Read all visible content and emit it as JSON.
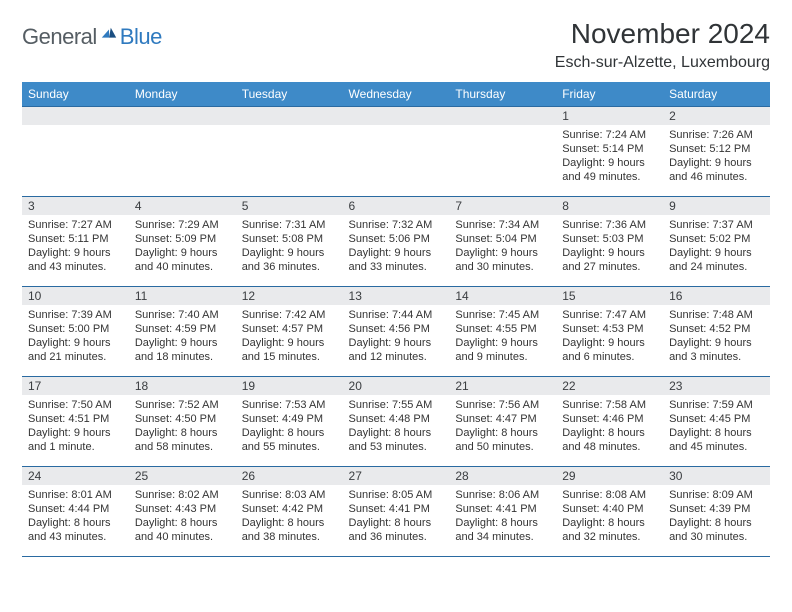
{
  "brand": {
    "word1": "General",
    "word2": "Blue"
  },
  "title": "November 2024",
  "location": "Esch-sur-Alzette, Luxembourg",
  "colors": {
    "header_bg": "#3e8ac8",
    "header_text": "#ffffff",
    "daynum_bg": "#e9eaec",
    "row_border": "#2a6aa1",
    "title_text": "#303437",
    "body_text": "#343434",
    "brand_general": "#555d63",
    "brand_blue": "#2f7abf"
  },
  "day_headers": [
    "Sunday",
    "Monday",
    "Tuesday",
    "Wednesday",
    "Thursday",
    "Friday",
    "Saturday"
  ],
  "weeks": [
    [
      {
        "n": "",
        "lines": []
      },
      {
        "n": "",
        "lines": []
      },
      {
        "n": "",
        "lines": []
      },
      {
        "n": "",
        "lines": []
      },
      {
        "n": "",
        "lines": []
      },
      {
        "n": "1",
        "lines": [
          "Sunrise: 7:24 AM",
          "Sunset: 5:14 PM",
          "Daylight: 9 hours and 49 minutes."
        ]
      },
      {
        "n": "2",
        "lines": [
          "Sunrise: 7:26 AM",
          "Sunset: 5:12 PM",
          "Daylight: 9 hours and 46 minutes."
        ]
      }
    ],
    [
      {
        "n": "3",
        "lines": [
          "Sunrise: 7:27 AM",
          "Sunset: 5:11 PM",
          "Daylight: 9 hours and 43 minutes."
        ]
      },
      {
        "n": "4",
        "lines": [
          "Sunrise: 7:29 AM",
          "Sunset: 5:09 PM",
          "Daylight: 9 hours and 40 minutes."
        ]
      },
      {
        "n": "5",
        "lines": [
          "Sunrise: 7:31 AM",
          "Sunset: 5:08 PM",
          "Daylight: 9 hours and 36 minutes."
        ]
      },
      {
        "n": "6",
        "lines": [
          "Sunrise: 7:32 AM",
          "Sunset: 5:06 PM",
          "Daylight: 9 hours and 33 minutes."
        ]
      },
      {
        "n": "7",
        "lines": [
          "Sunrise: 7:34 AM",
          "Sunset: 5:04 PM",
          "Daylight: 9 hours and 30 minutes."
        ]
      },
      {
        "n": "8",
        "lines": [
          "Sunrise: 7:36 AM",
          "Sunset: 5:03 PM",
          "Daylight: 9 hours and 27 minutes."
        ]
      },
      {
        "n": "9",
        "lines": [
          "Sunrise: 7:37 AM",
          "Sunset: 5:02 PM",
          "Daylight: 9 hours and 24 minutes."
        ]
      }
    ],
    [
      {
        "n": "10",
        "lines": [
          "Sunrise: 7:39 AM",
          "Sunset: 5:00 PM",
          "Daylight: 9 hours and 21 minutes."
        ]
      },
      {
        "n": "11",
        "lines": [
          "Sunrise: 7:40 AM",
          "Sunset: 4:59 PM",
          "Daylight: 9 hours and 18 minutes."
        ]
      },
      {
        "n": "12",
        "lines": [
          "Sunrise: 7:42 AM",
          "Sunset: 4:57 PM",
          "Daylight: 9 hours and 15 minutes."
        ]
      },
      {
        "n": "13",
        "lines": [
          "Sunrise: 7:44 AM",
          "Sunset: 4:56 PM",
          "Daylight: 9 hours and 12 minutes."
        ]
      },
      {
        "n": "14",
        "lines": [
          "Sunrise: 7:45 AM",
          "Sunset: 4:55 PM",
          "Daylight: 9 hours and 9 minutes."
        ]
      },
      {
        "n": "15",
        "lines": [
          "Sunrise: 7:47 AM",
          "Sunset: 4:53 PM",
          "Daylight: 9 hours and 6 minutes."
        ]
      },
      {
        "n": "16",
        "lines": [
          "Sunrise: 7:48 AM",
          "Sunset: 4:52 PM",
          "Daylight: 9 hours and 3 minutes."
        ]
      }
    ],
    [
      {
        "n": "17",
        "lines": [
          "Sunrise: 7:50 AM",
          "Sunset: 4:51 PM",
          "Daylight: 9 hours and 1 minute."
        ]
      },
      {
        "n": "18",
        "lines": [
          "Sunrise: 7:52 AM",
          "Sunset: 4:50 PM",
          "Daylight: 8 hours and 58 minutes."
        ]
      },
      {
        "n": "19",
        "lines": [
          "Sunrise: 7:53 AM",
          "Sunset: 4:49 PM",
          "Daylight: 8 hours and 55 minutes."
        ]
      },
      {
        "n": "20",
        "lines": [
          "Sunrise: 7:55 AM",
          "Sunset: 4:48 PM",
          "Daylight: 8 hours and 53 minutes."
        ]
      },
      {
        "n": "21",
        "lines": [
          "Sunrise: 7:56 AM",
          "Sunset: 4:47 PM",
          "Daylight: 8 hours and 50 minutes."
        ]
      },
      {
        "n": "22",
        "lines": [
          "Sunrise: 7:58 AM",
          "Sunset: 4:46 PM",
          "Daylight: 8 hours and 48 minutes."
        ]
      },
      {
        "n": "23",
        "lines": [
          "Sunrise: 7:59 AM",
          "Sunset: 4:45 PM",
          "Daylight: 8 hours and 45 minutes."
        ]
      }
    ],
    [
      {
        "n": "24",
        "lines": [
          "Sunrise: 8:01 AM",
          "Sunset: 4:44 PM",
          "Daylight: 8 hours and 43 minutes."
        ]
      },
      {
        "n": "25",
        "lines": [
          "Sunrise: 8:02 AM",
          "Sunset: 4:43 PM",
          "Daylight: 8 hours and 40 minutes."
        ]
      },
      {
        "n": "26",
        "lines": [
          "Sunrise: 8:03 AM",
          "Sunset: 4:42 PM",
          "Daylight: 8 hours and 38 minutes."
        ]
      },
      {
        "n": "27",
        "lines": [
          "Sunrise: 8:05 AM",
          "Sunset: 4:41 PM",
          "Daylight: 8 hours and 36 minutes."
        ]
      },
      {
        "n": "28",
        "lines": [
          "Sunrise: 8:06 AM",
          "Sunset: 4:41 PM",
          "Daylight: 8 hours and 34 minutes."
        ]
      },
      {
        "n": "29",
        "lines": [
          "Sunrise: 8:08 AM",
          "Sunset: 4:40 PM",
          "Daylight: 8 hours and 32 minutes."
        ]
      },
      {
        "n": "30",
        "lines": [
          "Sunrise: 8:09 AM",
          "Sunset: 4:39 PM",
          "Daylight: 8 hours and 30 minutes."
        ]
      }
    ]
  ]
}
